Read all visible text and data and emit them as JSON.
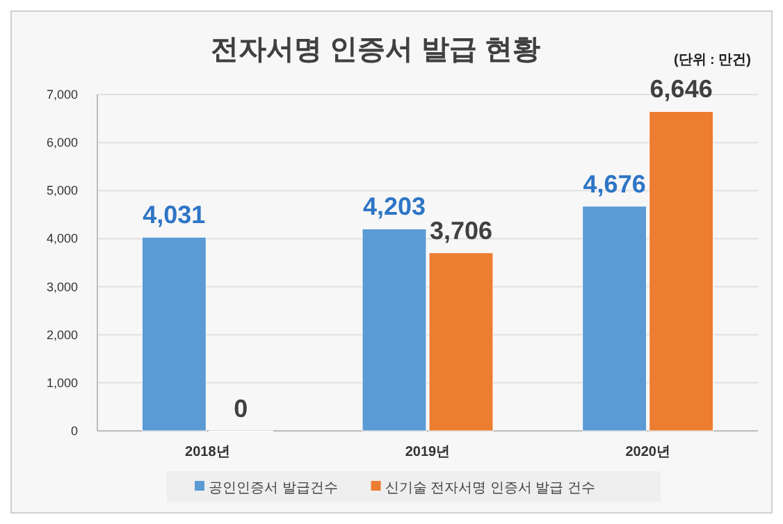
{
  "chart_data": {
    "type": "bar",
    "title": "전자서명 인증서 발급 현황",
    "annotations": [
      "(단위 : 만건)"
    ],
    "categories": [
      "2018년",
      "2019년",
      "2020년"
    ],
    "series": [
      {
        "name": "공인인증서 발급건수",
        "color": "#5b9bd5",
        "values": [
          4031,
          4203,
          4676
        ],
        "value_labels": [
          "4,031",
          "4,203",
          "4,676"
        ]
      },
      {
        "name": "신기술 전자서명 인증서 발급 건수",
        "color": "#ed7d31",
        "values": [
          0,
          3706,
          6646
        ],
        "value_labels": [
          "0",
          "3,706",
          "6,646"
        ]
      }
    ],
    "ylim": [
      0,
      7000
    ],
    "yticks": [
      {
        "value": 0,
        "label": "0"
      },
      {
        "value": 1000,
        "label": "1,000"
      },
      {
        "value": 2000,
        "label": "2,000"
      },
      {
        "value": 3000,
        "label": "3,000"
      },
      {
        "value": 4000,
        "label": "4,000"
      },
      {
        "value": 5000,
        "label": "5,000"
      },
      {
        "value": 6000,
        "label": "6,000"
      },
      {
        "value": 7000,
        "label": "7,000"
      }
    ],
    "grid": "y",
    "legend": "bottom"
  }
}
